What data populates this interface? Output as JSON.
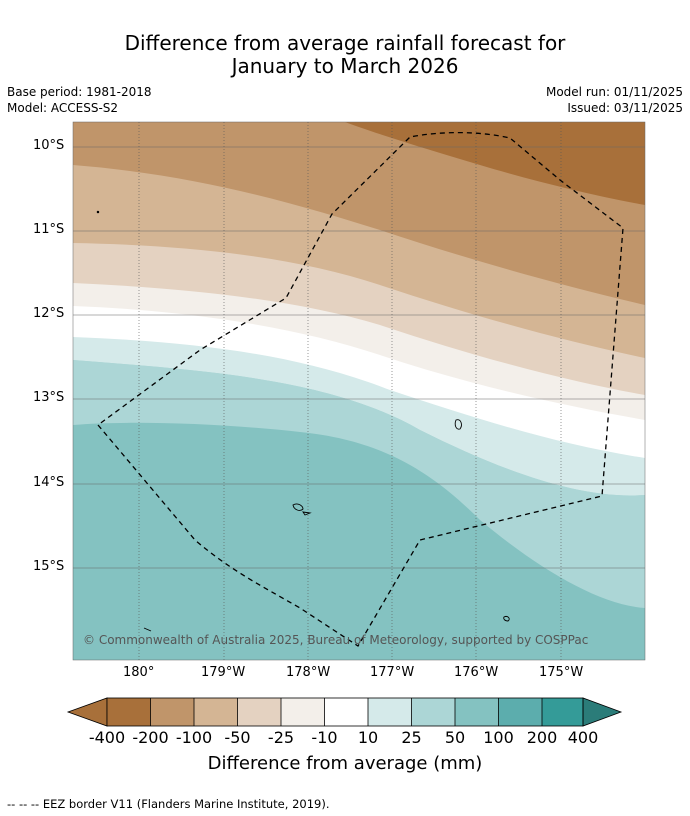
{
  "header": {
    "title_line1": "Difference from average rainfall forecast for",
    "title_line2": "January to March 2026",
    "base_period": "Base period: 1981-2018",
    "model": "Model: ACCESS-S2",
    "model_run": "Model run: 01/11/2025",
    "issued": "Issued: 03/11/2025"
  },
  "map": {
    "lat_labels": [
      "10°S",
      "11°S",
      "12°S",
      "13°S",
      "14°S",
      "15°S"
    ],
    "lon_labels": [
      "180°",
      "179°W",
      "178°W",
      "177°W",
      "176°W",
      "175°W"
    ],
    "copyright": "© Commonwealth of Australia 2025, Bureau of Meteorology, supported by COSPPac"
  },
  "legend": {
    "levels": [
      "-400",
      "-200",
      "-100",
      "-50",
      "-25",
      "-10",
      "10",
      "25",
      "50",
      "100",
      "200",
      "400"
    ],
    "colors": [
      "#a8703a",
      "#c0956a",
      "#d4b594",
      "#e4d2c1",
      "#f3efea",
      "#ffffff",
      "#d5eaea",
      "#acd6d6",
      "#84c2c1",
      "#5cadad",
      "#349b98",
      "#2b7c79"
    ],
    "title": "Difference from average (mm)",
    "footnote": "--  --  -- EEZ border V11 (Flanders Marine Institute, 2019)."
  }
}
